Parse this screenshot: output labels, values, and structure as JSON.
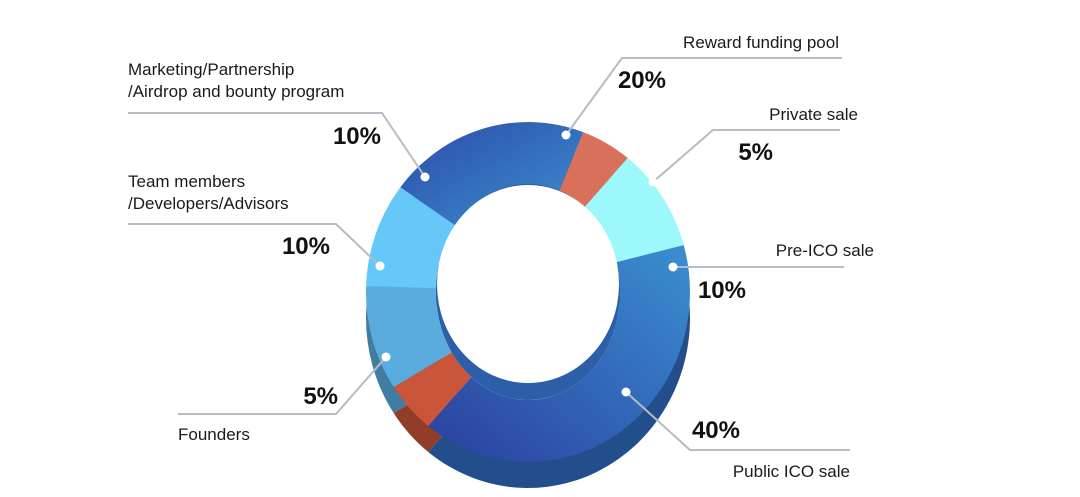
{
  "chart_data": {
    "type": "pie",
    "title": "",
    "slices": [
      {
        "label_lines": [
          "Reward funding pool"
        ],
        "value": 20,
        "value_label": "20%",
        "color": "#3a6fc0"
      },
      {
        "label_lines": [
          "Private sale"
        ],
        "value": 5,
        "value_label": "5%",
        "color": "#d9705a"
      },
      {
        "label_lines": [
          "Pre-ICO sale"
        ],
        "value": 10,
        "value_label": "10%",
        "color": "#9cf8fb"
      },
      {
        "label_lines": [
          "Public ICO sale"
        ],
        "value": 40,
        "value_label": "40%",
        "color": "#2f6ec2"
      },
      {
        "label_lines": [
          "Founders"
        ],
        "value": 5,
        "value_label": "5%",
        "color": "#c9553a"
      },
      {
        "label_lines": [
          "Team members",
          "/Developers/Advisors"
        ],
        "value": 10,
        "value_label": "10%",
        "color": "#5aacdf"
      },
      {
        "label_lines": [
          "Marketing/Partnership",
          "/Airdrop and bounty program"
        ],
        "value": 10,
        "value_label": "10%",
        "color": "#66c8f8"
      }
    ],
    "legend": "none"
  }
}
